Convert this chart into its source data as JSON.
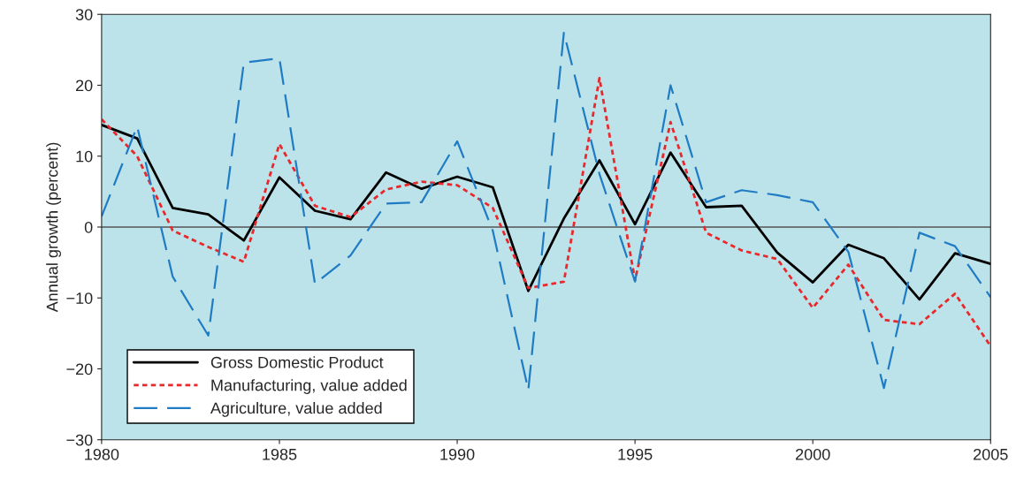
{
  "chart_data": {
    "type": "line",
    "ylabel": "Annual growth (percent)",
    "x": [
      1980,
      1981,
      1982,
      1983,
      1984,
      1985,
      1986,
      1987,
      1988,
      1989,
      1990,
      1991,
      1992,
      1993,
      1994,
      1995,
      1996,
      1997,
      1998,
      1999,
      2000,
      2001,
      2002,
      2003,
      2004,
      2005
    ],
    "series": [
      {
        "name": "Gross Domestic Product",
        "color": "#000000",
        "line_style": "solid",
        "values": [
          14.4,
          12.5,
          2.7,
          1.8,
          -1.9,
          7.0,
          2.3,
          1.1,
          7.7,
          5.4,
          7.1,
          5.6,
          -9.0,
          1.2,
          9.4,
          0.4,
          10.5,
          2.8,
          3.0,
          -3.6,
          -7.8,
          -2.5,
          -4.4,
          -10.2,
          -3.7,
          -5.2
        ]
      },
      {
        "name": "Manufacturing, value added",
        "color": "#e8282b",
        "line_style": "dotted",
        "values": [
          15.2,
          10,
          -0.5,
          -2.8,
          -4.9,
          11.7,
          3.0,
          1.4,
          5.3,
          6.4,
          5.9,
          2.7,
          -8.6,
          -7.7,
          21.0,
          -7.5,
          14.8,
          -0.8,
          -3.3,
          -4.5,
          -11.4,
          -5.3,
          -13.1,
          -13.7,
          -9.4,
          -16.8
        ]
      },
      {
        "name": "Agriculture, value added",
        "color": "#1f7cc4",
        "line_style": "dashed",
        "values": [
          1.5,
          14.2,
          -7.0,
          -15.3,
          23.2,
          23.8,
          -8.0,
          -4.0,
          3.3,
          3.5,
          12.1,
          -0.5,
          -23.0,
          27.4,
          7.5,
          -7.7,
          20.0,
          3.5,
          5.2,
          4.5,
          3.5,
          -3.5,
          -22.7,
          -0.8,
          -2.7,
          -9.9
        ]
      }
    ],
    "xlim": [
      1980,
      2005
    ],
    "xticks": [
      1980,
      1985,
      1990,
      1995,
      2000,
      2005
    ],
    "ylim": [
      -30,
      30
    ],
    "yticks": [
      -30,
      -20,
      -10,
      0,
      10,
      20,
      30
    ],
    "ref_lines": [
      {
        "axis": "y",
        "value": 0,
        "color": "#555555"
      }
    ],
    "grid": false,
    "legend": "bottom left",
    "marker": "none"
  }
}
